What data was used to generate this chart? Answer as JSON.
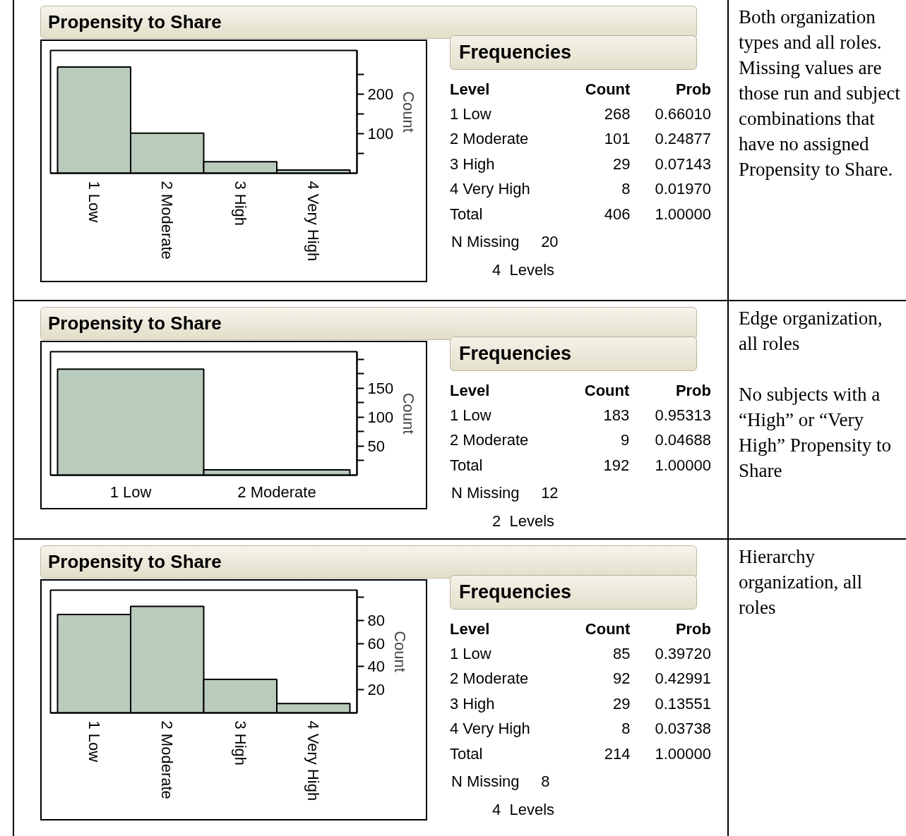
{
  "chart_data": [
    {
      "type": "bar",
      "title": "Propensity to Share",
      "ylabel": "Count",
      "categories": [
        "1 Low",
        "2 Moderate",
        "3 High",
        "4 Very High"
      ],
      "values": [
        268,
        101,
        29,
        8
      ],
      "color": "#b9cbbc",
      "ylim": [
        0,
        310
      ],
      "yticks": [
        {
          "value": 50,
          "label": null
        },
        100,
        {
          "value": 150,
          "label": null
        },
        200,
        {
          "value": 250,
          "label": null
        }
      ],
      "annotations": [
        "Frequencies",
        "Level",
        "Count",
        "Prob",
        "268",
        "0.66010",
        "101",
        "0.24877",
        "29",
        "0.07143",
        "8",
        "0.01970",
        "Total",
        "406",
        "1.00000",
        "N Missing     20",
        "4  Levels",
        "Both organization types and all roles. Missing values are those run and subject combinations that have no assigned Propensity to Share."
      ]
    },
    {
      "type": "bar",
      "title": "Propensity to Share",
      "ylabel": "Count",
      "categories": [
        "1 Low",
        "2 Moderate"
      ],
      "values": [
        183,
        9
      ],
      "color": "#b9cbbc",
      "ylim": [
        0,
        213
      ],
      "yticks": [
        {
          "value": 25,
          "label": null
        },
        50,
        {
          "value": 75,
          "label": null
        },
        100,
        {
          "value": 125,
          "label": null
        },
        150,
        {
          "value": 175,
          "label": null
        },
        {
          "value": 200,
          "label": null
        }
      ],
      "annotations": [
        "Frequencies",
        "Level",
        "Count",
        "Prob",
        "183",
        "0.95313",
        "9",
        "0.04688",
        "Total",
        "192",
        "1.00000",
        "N Missing     12",
        "2  Levels",
        "Edge organization, all roles\n\nNo subjects with a “High” or “Very High” Propensity to Share"
      ]
    },
    {
      "type": "bar",
      "title": "Propensity to Share",
      "ylabel": "Count",
      "categories": [
        "1 Low",
        "2 Moderate",
        "3 High",
        "4 Very High"
      ],
      "values": [
        85,
        92,
        29,
        8
      ],
      "color": "#b9cbbc",
      "ylim": [
        0,
        106
      ],
      "yticks": [
        20,
        40,
        60,
        80,
        {
          "value": 100,
          "label": null
        }
      ],
      "annotations": [
        "Frequencies",
        "Level",
        "Count",
        "Prob",
        "85",
        "0.39720",
        "92",
        "0.42991",
        "29",
        "0.13551",
        "8",
        "0.03738",
        "Total",
        "214",
        "1.00000",
        "N Missing     8",
        "4  Levels",
        "Hierarchy organization, all roles"
      ]
    }
  ]
}
